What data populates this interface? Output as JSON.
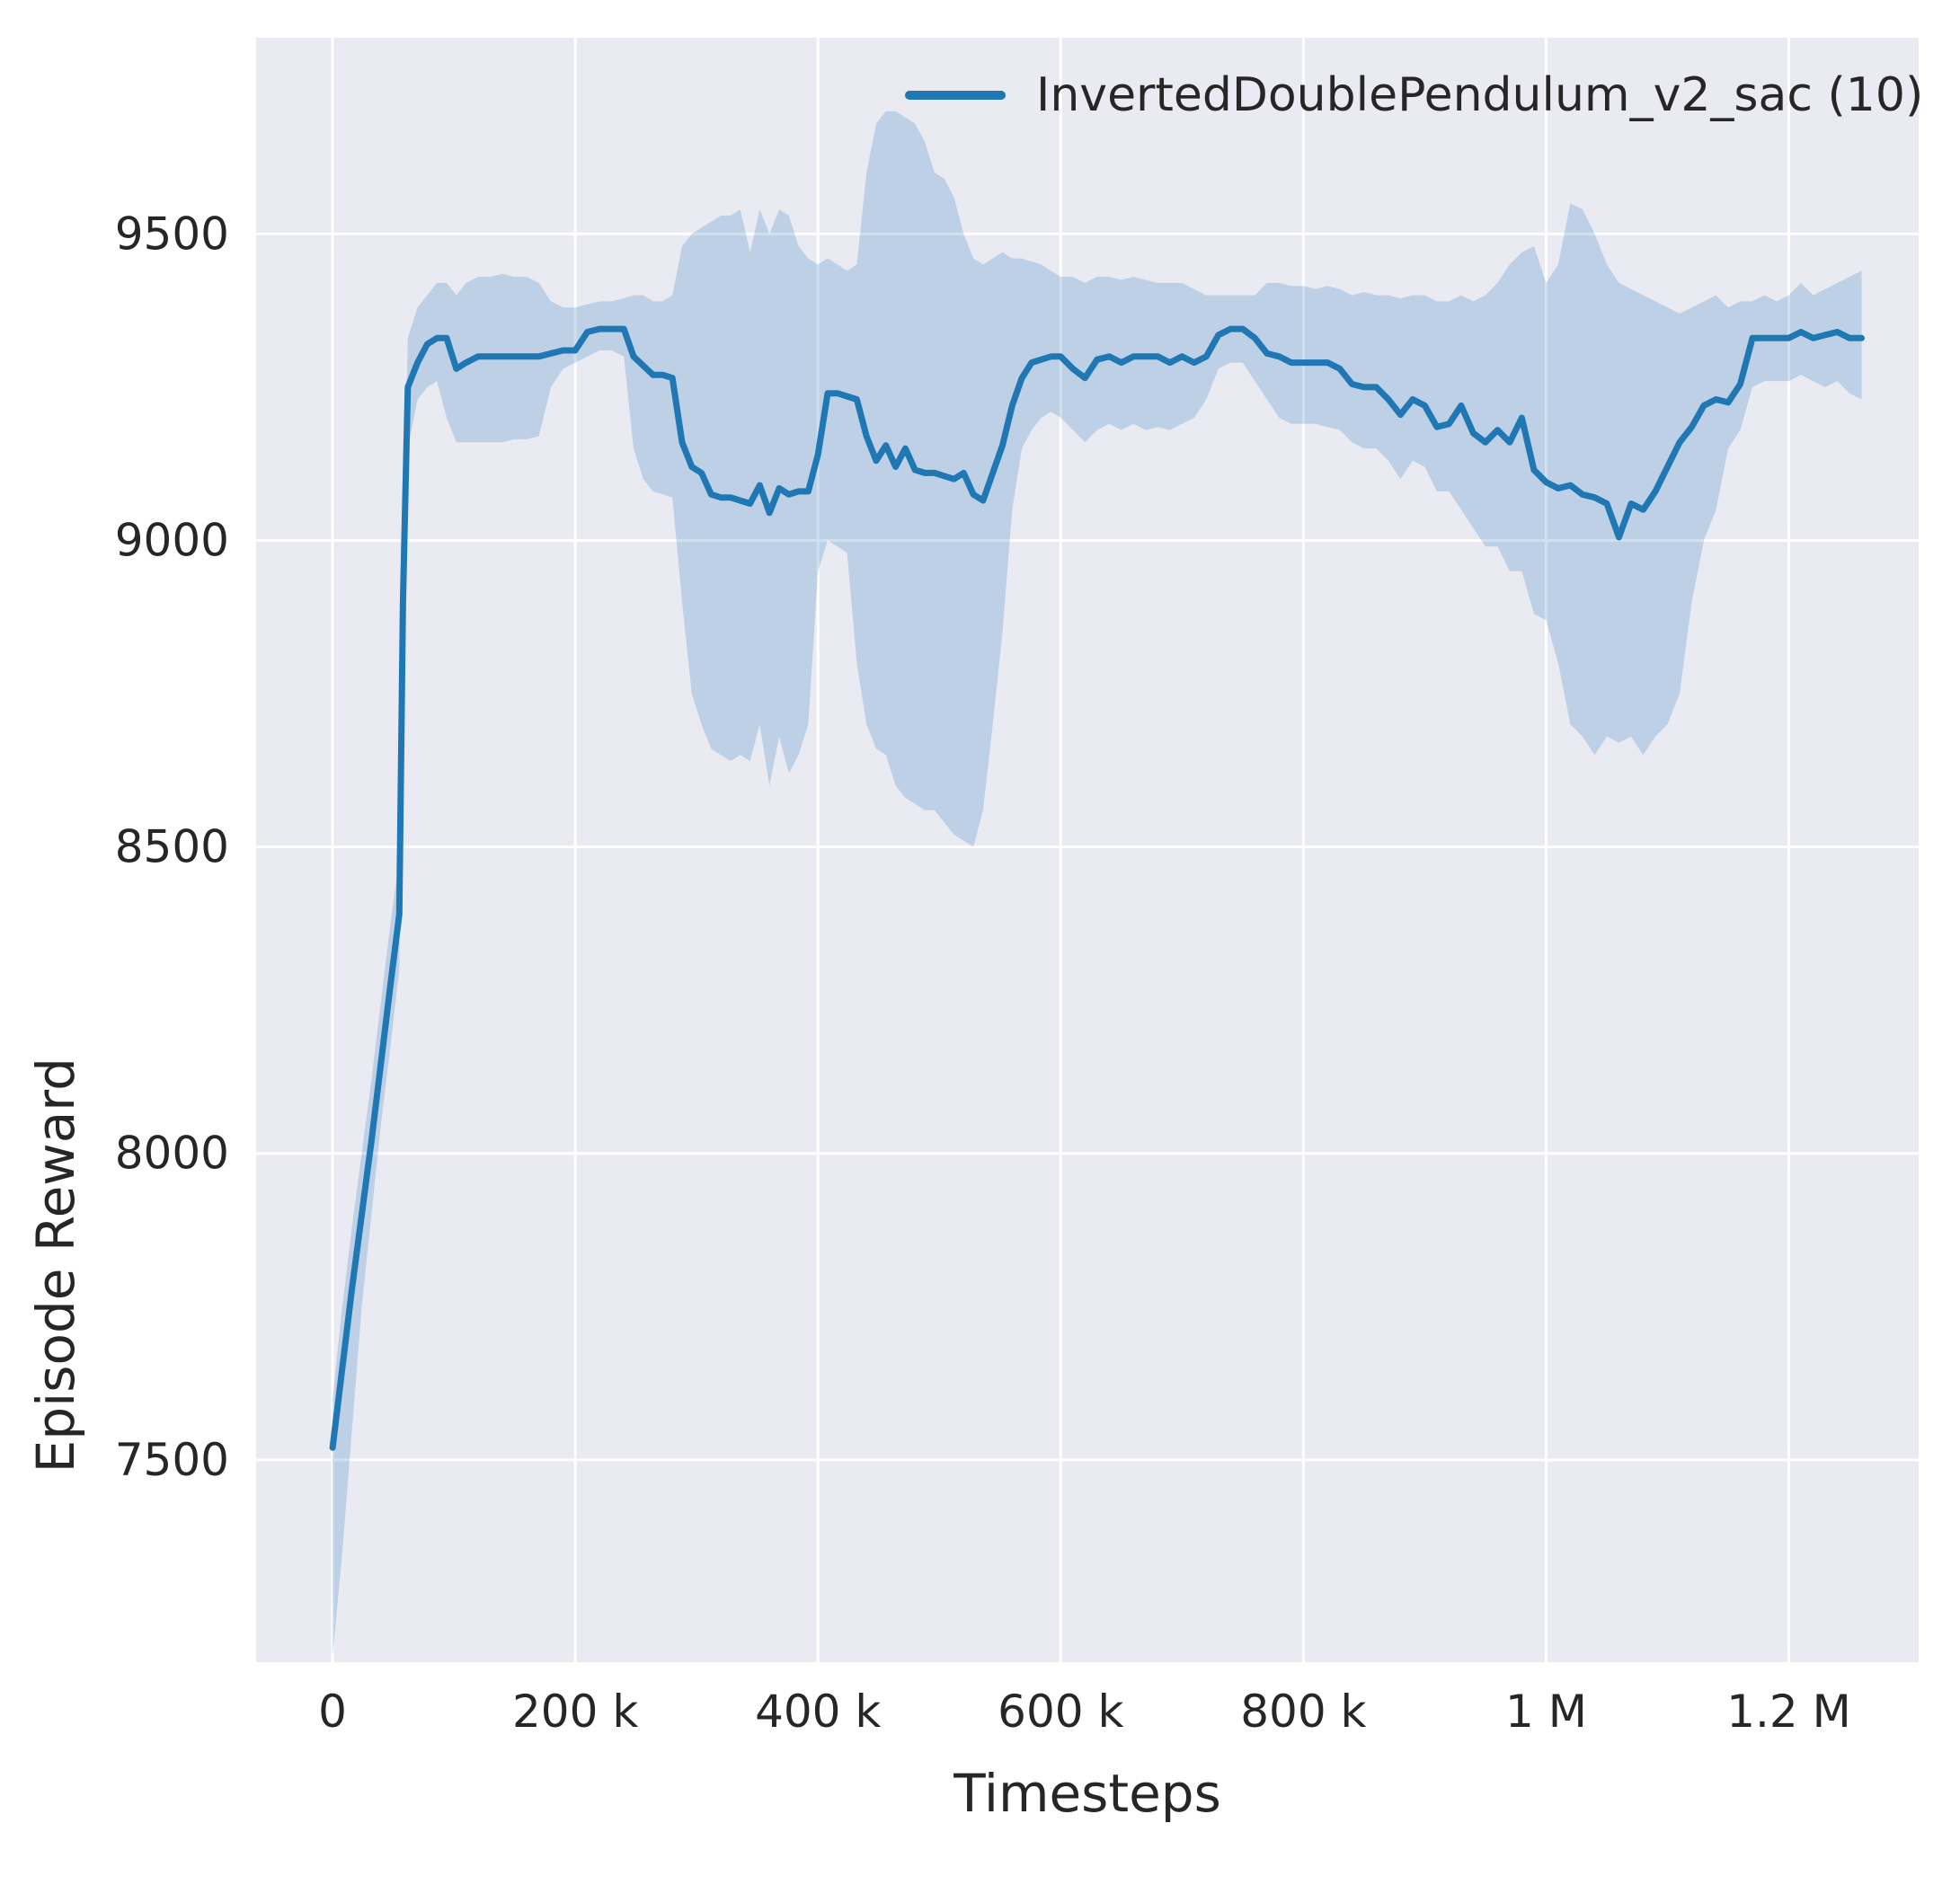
{
  "chart_data": {
    "type": "line",
    "title": "",
    "xlabel": "Timesteps",
    "ylabel": "Episode Reward",
    "legend_label": "InvertedDoublePendulum_v2_sac (10)",
    "legend_position": "upper right",
    "grid": true,
    "colors": {
      "line": "#1f77b4",
      "band": "#1f77b4",
      "band_opacity": 0.22,
      "plot_bg": "#eaeaf2",
      "grid_line": "#ffffff",
      "tick_text": "#262626"
    },
    "xlim": [
      -63000,
      1307000
    ],
    "ylim": [
      7170,
      9820
    ],
    "x_ticks": [
      {
        "value": 0,
        "label": "0"
      },
      {
        "value": 200000,
        "label": "200 k"
      },
      {
        "value": 400000,
        "label": "400 k"
      },
      {
        "value": 600000,
        "label": "600 k"
      },
      {
        "value": 800000,
        "label": "800 k"
      },
      {
        "value": 1000000,
        "label": "1 M"
      },
      {
        "value": 1200000,
        "label": "1.2 M"
      }
    ],
    "y_ticks": [
      {
        "value": 7500,
        "label": "7500"
      },
      {
        "value": 8000,
        "label": "8000"
      },
      {
        "value": 8500,
        "label": "8500"
      },
      {
        "value": 9000,
        "label": "9000"
      },
      {
        "value": 9500,
        "label": "9500"
      }
    ],
    "series": [
      {
        "name": "InvertedDoublePendulum_v2_sac (10)",
        "color": "#1f77b4",
        "x": [
          0,
          8000,
          16000,
          24000,
          32000,
          40000,
          48000,
          55000,
          58000,
          62000,
          70000,
          78000,
          86000,
          94000,
          102000,
          110000,
          120000,
          130000,
          140000,
          150000,
          160000,
          170000,
          180000,
          190000,
          200000,
          210000,
          220000,
          230000,
          240000,
          248000,
          256000,
          264000,
          272000,
          280000,
          288000,
          296000,
          304000,
          312000,
          320000,
          328000,
          336000,
          344000,
          352000,
          360000,
          368000,
          376000,
          384000,
          392000,
          400000,
          408000,
          416000,
          424000,
          432000,
          440000,
          448000,
          456000,
          464000,
          472000,
          480000,
          488000,
          496000,
          504000,
          512000,
          520000,
          528000,
          536000,
          544000,
          552000,
          560000,
          568000,
          576000,
          584000,
          592000,
          600000,
          610000,
          620000,
          630000,
          640000,
          650000,
          660000,
          670000,
          680000,
          690000,
          700000,
          710000,
          720000,
          730000,
          740000,
          750000,
          760000,
          770000,
          780000,
          790000,
          800000,
          810000,
          820000,
          830000,
          840000,
          850000,
          860000,
          870000,
          880000,
          890000,
          900000,
          910000,
          920000,
          930000,
          940000,
          950000,
          960000,
          970000,
          980000,
          990000,
          1000000,
          1010000,
          1020000,
          1030000,
          1040000,
          1050000,
          1060000,
          1070000,
          1080000,
          1090000,
          1100000,
          1110000,
          1120000,
          1130000,
          1140000,
          1150000,
          1160000,
          1170000,
          1180000,
          1190000,
          1200000,
          1210000,
          1220000,
          1230000,
          1240000,
          1250000,
          1260000
        ],
        "mean": [
          7520,
          7650,
          7780,
          7900,
          8020,
          8150,
          8280,
          8390,
          8900,
          9250,
          9290,
          9320,
          9330,
          9330,
          9280,
          9290,
          9300,
          9300,
          9300,
          9300,
          9300,
          9300,
          9305,
          9310,
          9310,
          9340,
          9345,
          9345,
          9345,
          9300,
          9285,
          9270,
          9270,
          9265,
          9160,
          9120,
          9110,
          9075,
          9070,
          9070,
          9065,
          9060,
          9090,
          9045,
          9085,
          9075,
          9080,
          9080,
          9140,
          9240,
          9240,
          9235,
          9230,
          9170,
          9130,
          9155,
          9120,
          9150,
          9115,
          9110,
          9110,
          9105,
          9100,
          9110,
          9075,
          9065,
          9110,
          9155,
          9220,
          9265,
          9290,
          9295,
          9300,
          9300,
          9280,
          9265,
          9295,
          9300,
          9290,
          9300,
          9300,
          9300,
          9290,
          9300,
          9290,
          9300,
          9335,
          9345,
          9345,
          9330,
          9305,
          9300,
          9290,
          9290,
          9290,
          9290,
          9280,
          9255,
          9250,
          9250,
          9230,
          9205,
          9230,
          9220,
          9185,
          9190,
          9220,
          9175,
          9160,
          9180,
          9160,
          9200,
          9115,
          9095,
          9085,
          9090,
          9075,
          9070,
          9060,
          9005,
          9060,
          9050,
          9080,
          9120,
          9160,
          9185,
          9220,
          9230,
          9225,
          9255,
          9330,
          9330,
          9330,
          9330,
          9340,
          9330,
          9335,
          9340,
          9330,
          9330
        ],
        "lo": [
          7180,
          7350,
          7550,
          7750,
          7900,
          8050,
          8180,
          8300,
          8750,
          9150,
          9230,
          9250,
          9260,
          9200,
          9160,
          9160,
          9160,
          9160,
          9160,
          9165,
          9165,
          9170,
          9250,
          9280,
          9290,
          9300,
          9310,
          9310,
          9300,
          9150,
          9100,
          9080,
          9075,
          9070,
          8900,
          8750,
          8700,
          8660,
          8650,
          8640,
          8650,
          8640,
          8700,
          8600,
          8680,
          8620,
          8650,
          8700,
          8950,
          9000,
          8990,
          8980,
          8800,
          8700,
          8660,
          8650,
          8600,
          8580,
          8570,
          8560,
          8560,
          8540,
          8520,
          8510,
          8500,
          8560,
          8700,
          8850,
          9050,
          9150,
          9180,
          9200,
          9210,
          9200,
          9180,
          9160,
          9180,
          9190,
          9180,
          9190,
          9180,
          9185,
          9180,
          9190,
          9200,
          9230,
          9280,
          9290,
          9290,
          9260,
          9230,
          9200,
          9190,
          9190,
          9190,
          9185,
          9180,
          9160,
          9150,
          9150,
          9130,
          9100,
          9130,
          9120,
          9080,
          9080,
          9050,
          9020,
          8990,
          8990,
          8950,
          8950,
          8880,
          8870,
          8800,
          8700,
          8680,
          8650,
          8680,
          8670,
          8680,
          8650,
          8680,
          8700,
          8750,
          8900,
          9000,
          9050,
          9150,
          9180,
          9250,
          9260,
          9260,
          9260,
          9270,
          9260,
          9250,
          9260,
          9240,
          9230
        ],
        "hi": [
          7600,
          7750,
          7880,
          8000,
          8120,
          8250,
          8380,
          8480,
          9000,
          9330,
          9380,
          9400,
          9420,
          9420,
          9400,
          9420,
          9430,
          9430,
          9435,
          9430,
          9430,
          9420,
          9390,
          9380,
          9380,
          9385,
          9390,
          9390,
          9395,
          9400,
          9400,
          9390,
          9390,
          9400,
          9480,
          9500,
          9510,
          9520,
          9530,
          9530,
          9540,
          9470,
          9540,
          9500,
          9540,
          9530,
          9480,
          9460,
          9450,
          9460,
          9450,
          9440,
          9450,
          9600,
          9680,
          9700,
          9700,
          9690,
          9680,
          9650,
          9600,
          9590,
          9560,
          9500,
          9460,
          9450,
          9460,
          9470,
          9460,
          9460,
          9455,
          9450,
          9440,
          9430,
          9430,
          9420,
          9430,
          9430,
          9425,
          9430,
          9425,
          9420,
          9420,
          9420,
          9410,
          9400,
          9400,
          9400,
          9400,
          9400,
          9420,
          9420,
          9415,
          9415,
          9410,
          9415,
          9410,
          9400,
          9405,
          9400,
          9400,
          9395,
          9400,
          9400,
          9390,
          9390,
          9400,
          9390,
          9400,
          9420,
          9450,
          9470,
          9480,
          9420,
          9450,
          9550,
          9540,
          9500,
          9450,
          9420,
          9410,
          9400,
          9390,
          9380,
          9370,
          9380,
          9390,
          9400,
          9380,
          9390,
          9390,
          9400,
          9390,
          9400,
          9420,
          9400,
          9410,
          9420,
          9430,
          9440
        ]
      }
    ]
  }
}
